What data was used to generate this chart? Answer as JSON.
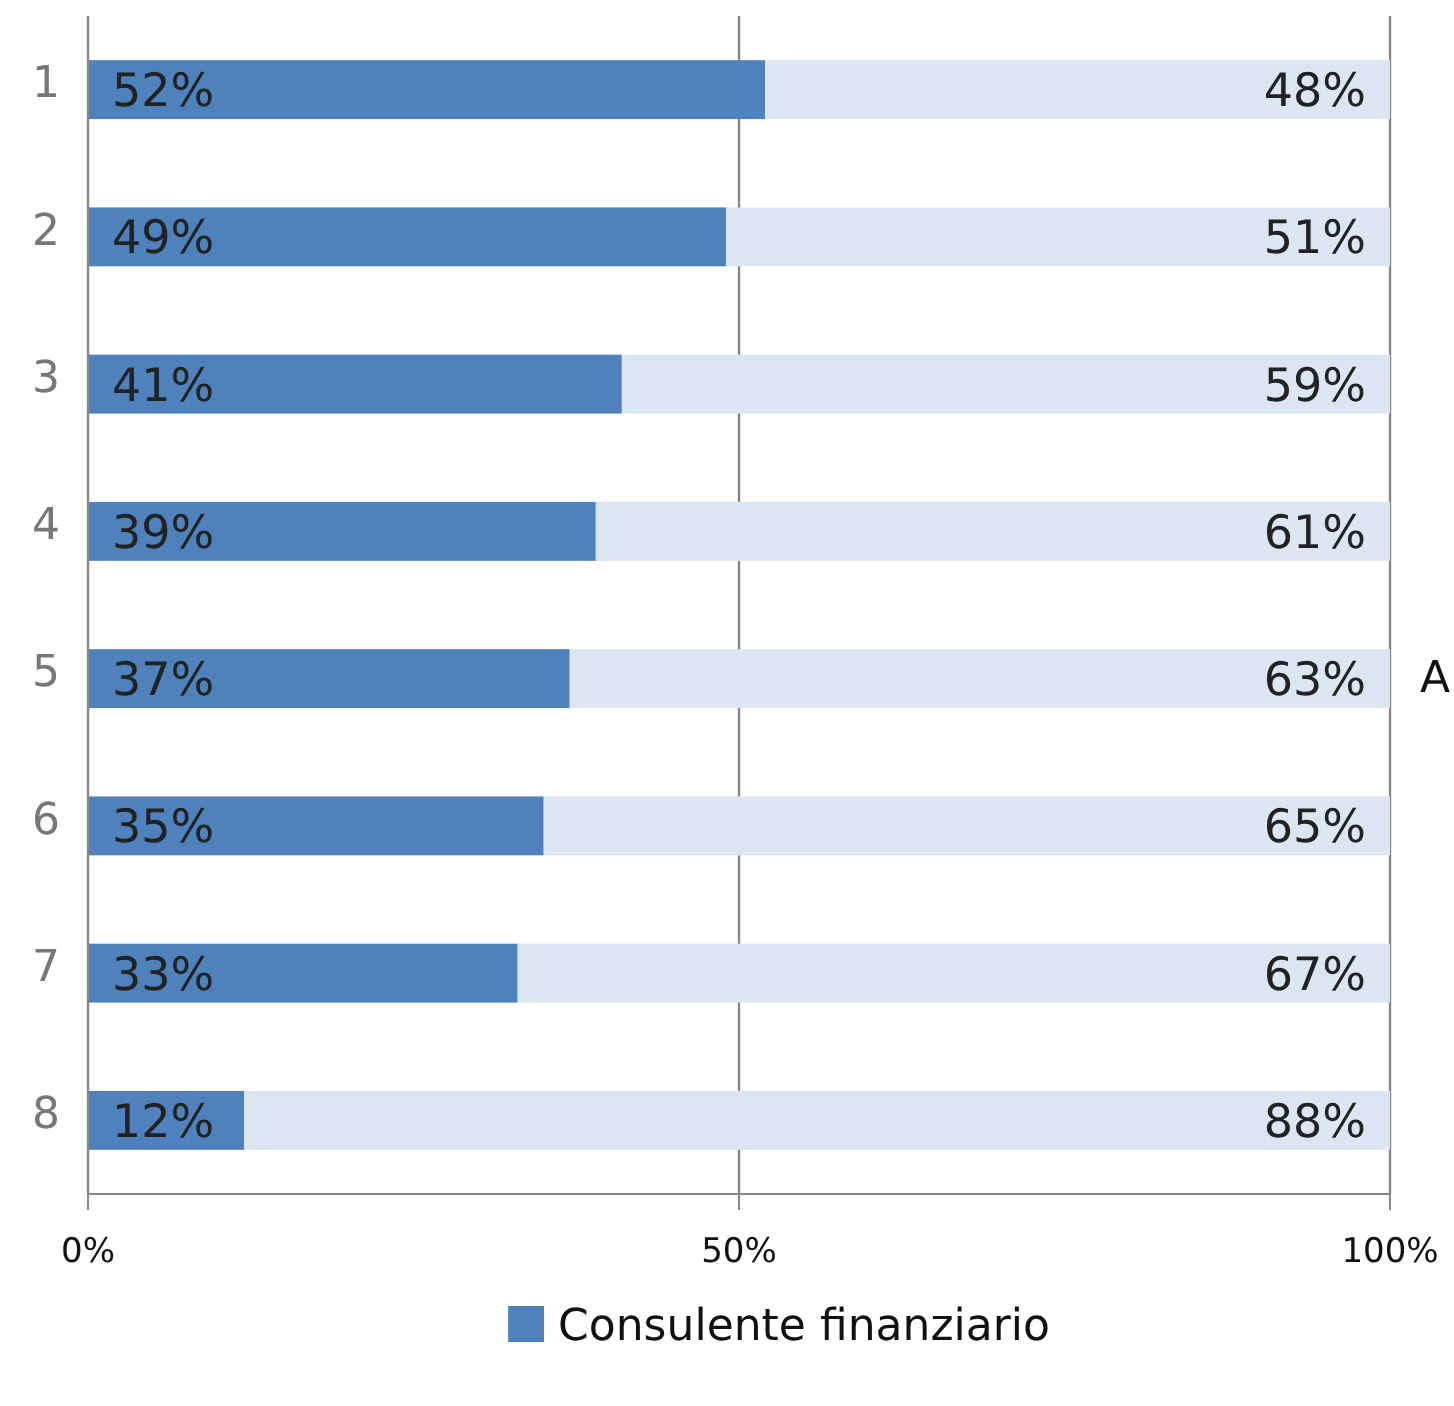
{
  "chart_data": {
    "type": "bar",
    "orientation": "horizontal",
    "stacked": true,
    "categories": [
      "1",
      "2",
      "3",
      "4",
      "5",
      "6",
      "7",
      "8"
    ],
    "series": [
      {
        "name": "Consulente finanziario",
        "color": "#4f81bd",
        "values": [
          52,
          49,
          41,
          39,
          37,
          35,
          33,
          12
        ],
        "value_labels": [
          "52%",
          "49%",
          "41%",
          "39%",
          "37%",
          "35%",
          "33%",
          "12%"
        ]
      },
      {
        "color": "#dce6f2",
        "values": [
          48,
          51,
          59,
          61,
          63,
          65,
          67,
          88
        ],
        "value_labels": [
          "48%",
          "51%",
          "59%",
          "61%",
          "63%",
          "65%",
          "67%",
          "88%"
        ]
      }
    ],
    "xlim": [
      0,
      100
    ],
    "xticks": [
      {
        "value": 0,
        "label": "0%"
      },
      {
        "value": 50,
        "label": "50%"
      },
      {
        "value": 100,
        "label": "100%"
      }
    ],
    "grid": "x",
    "legend": "bottom",
    "annotations": [
      "A"
    ]
  }
}
